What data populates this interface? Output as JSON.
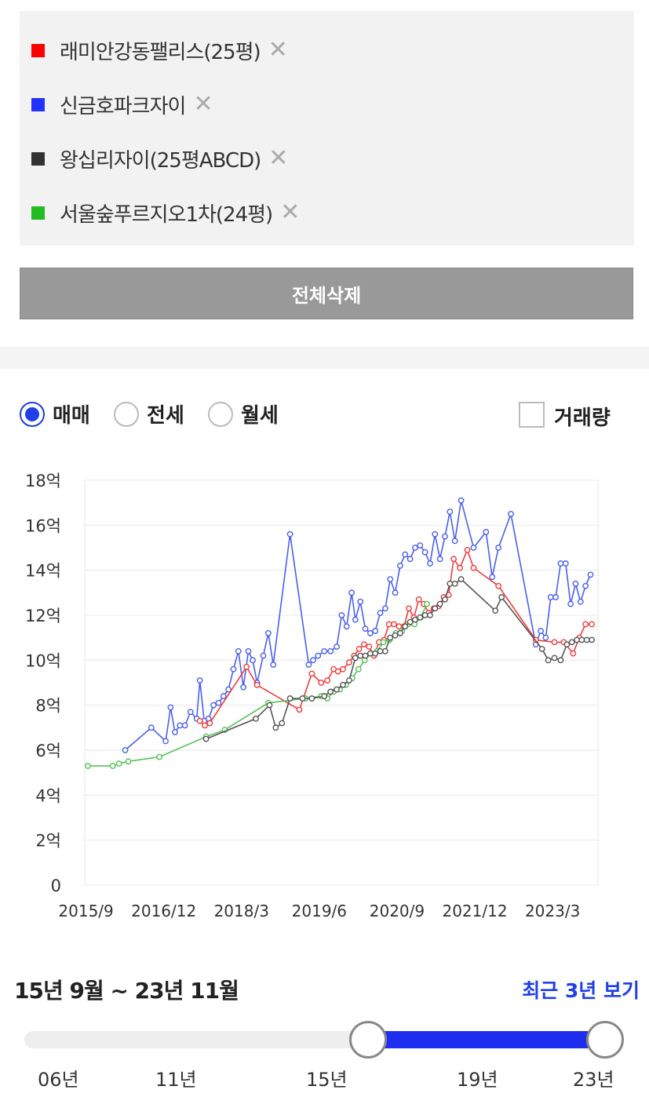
{
  "legend": {
    "items": [
      {
        "label": "래미안강동팰리스(25평)",
        "color": "#ff0000",
        "remove": "✕"
      },
      {
        "label": "신금호파크자이",
        "color": "#2233ff",
        "remove": "✕"
      },
      {
        "label": "왕십리자이(25평ABCD)",
        "color": "#333333",
        "remove": "✕"
      },
      {
        "label": "서울숲푸르지오1차(24평)",
        "color": "#22bb22",
        "remove": "✕"
      }
    ],
    "delete_all": "전체삭제"
  },
  "trade_type": {
    "options": [
      "매매",
      "전세",
      "월세"
    ],
    "selected": "매매",
    "volume_label": "거래량",
    "volume_checked": false
  },
  "range": {
    "text": "15년 9월 ~ 23년 11월",
    "recent_link": "최근 3년 보기",
    "slider_ticks": [
      "06년",
      "11년",
      "15년",
      "19년",
      "23년"
    ],
    "slider_start_year": 2015.7,
    "slider_end_year": 2023.9
  },
  "chart_data": {
    "type": "line",
    "y_ticks": [
      "0",
      "2억",
      "4억",
      "6억",
      "8억",
      "10억",
      "12억",
      "14억",
      "16억",
      "18억"
    ],
    "x_ticks": [
      {
        "label": "2015/9",
        "x": 2015.67
      },
      {
        "label": "2016/12",
        "x": 2016.92
      },
      {
        "label": "2018/3",
        "x": 2018.17
      },
      {
        "label": "2019/6",
        "x": 2019.42
      },
      {
        "label": "2020/9",
        "x": 2020.67
      },
      {
        "label": "2021/12",
        "x": 2021.92
      },
      {
        "label": "2023/3",
        "x": 2023.17
      }
    ],
    "ylim": [
      0,
      18
    ],
    "xlim": [
      2015.65,
      2023.9
    ],
    "ylabel_unit": "억",
    "grid": true,
    "series": [
      {
        "name": "신금호파크자이",
        "color": "#4a5ff0",
        "points": [
          [
            2016.3,
            6.0
          ],
          [
            2016.72,
            7.0
          ],
          [
            2016.95,
            6.4
          ],
          [
            2017.03,
            7.9
          ],
          [
            2017.1,
            6.8
          ],
          [
            2017.18,
            7.1
          ],
          [
            2017.26,
            7.1
          ],
          [
            2017.35,
            7.7
          ],
          [
            2017.45,
            7.4
          ],
          [
            2017.5,
            9.1
          ],
          [
            2017.57,
            7.3
          ],
          [
            2017.64,
            7.4
          ],
          [
            2017.72,
            8.0
          ],
          [
            2017.8,
            8.1
          ],
          [
            2017.88,
            8.4
          ],
          [
            2017.96,
            8.7
          ],
          [
            2018.04,
            9.6
          ],
          [
            2018.12,
            10.4
          ],
          [
            2018.2,
            8.8
          ],
          [
            2018.28,
            10.4
          ],
          [
            2018.35,
            10.0
          ],
          [
            2018.42,
            9.0
          ],
          [
            2018.52,
            10.2
          ],
          [
            2018.6,
            11.2
          ],
          [
            2018.68,
            9.8
          ],
          [
            2018.95,
            15.6
          ],
          [
            2019.25,
            9.8
          ],
          [
            2019.32,
            10.0
          ],
          [
            2019.4,
            10.2
          ],
          [
            2019.5,
            10.4
          ],
          [
            2019.6,
            10.4
          ],
          [
            2019.7,
            10.6
          ],
          [
            2019.78,
            12.0
          ],
          [
            2019.86,
            11.5
          ],
          [
            2019.94,
            13.0
          ],
          [
            2020.0,
            11.8
          ],
          [
            2020.08,
            12.6
          ],
          [
            2020.16,
            11.4
          ],
          [
            2020.24,
            11.2
          ],
          [
            2020.32,
            11.3
          ],
          [
            2020.4,
            12.1
          ],
          [
            2020.48,
            12.3
          ],
          [
            2020.56,
            13.6
          ],
          [
            2020.64,
            13.0
          ],
          [
            2020.72,
            14.2
          ],
          [
            2020.8,
            14.7
          ],
          [
            2020.88,
            14.5
          ],
          [
            2020.96,
            15.0
          ],
          [
            2021.04,
            15.1
          ],
          [
            2021.12,
            14.8
          ],
          [
            2021.2,
            14.3
          ],
          [
            2021.28,
            15.6
          ],
          [
            2021.36,
            14.5
          ],
          [
            2021.44,
            15.5
          ],
          [
            2021.52,
            16.6
          ],
          [
            2021.6,
            15.3
          ],
          [
            2021.7,
            17.1
          ],
          [
            2021.9,
            15.0
          ],
          [
            2022.1,
            15.7
          ],
          [
            2022.2,
            13.7
          ],
          [
            2022.3,
            15.0
          ],
          [
            2022.5,
            16.5
          ],
          [
            2022.9,
            10.7
          ],
          [
            2022.98,
            11.3
          ],
          [
            2023.06,
            11.0
          ],
          [
            2023.14,
            12.8
          ],
          [
            2023.22,
            12.8
          ],
          [
            2023.3,
            14.3
          ],
          [
            2023.38,
            14.3
          ],
          [
            2023.46,
            12.5
          ],
          [
            2023.54,
            13.4
          ],
          [
            2023.62,
            12.6
          ],
          [
            2023.7,
            13.3
          ],
          [
            2023.78,
            13.8
          ]
        ]
      },
      {
        "name": "래미안강동팰리스(25평)",
        "color": "#f23b3b",
        "points": [
          [
            2017.5,
            7.3
          ],
          [
            2017.58,
            7.1
          ],
          [
            2017.66,
            7.2
          ],
          [
            2018.25,
            9.7
          ],
          [
            2018.42,
            8.9
          ],
          [
            2019.1,
            7.8
          ],
          [
            2019.3,
            9.4
          ],
          [
            2019.45,
            9.0
          ],
          [
            2019.55,
            9.1
          ],
          [
            2019.65,
            9.6
          ],
          [
            2019.72,
            9.5
          ],
          [
            2019.8,
            9.6
          ],
          [
            2019.9,
            9.9
          ],
          [
            2019.98,
            10.2
          ],
          [
            2020.06,
            10.5
          ],
          [
            2020.14,
            10.7
          ],
          [
            2020.22,
            10.6
          ],
          [
            2020.3,
            10.2
          ],
          [
            2020.38,
            10.8
          ],
          [
            2020.46,
            10.9
          ],
          [
            2020.54,
            11.6
          ],
          [
            2020.62,
            11.6
          ],
          [
            2020.7,
            11.5
          ],
          [
            2020.78,
            11.5
          ],
          [
            2020.86,
            12.3
          ],
          [
            2020.94,
            11.9
          ],
          [
            2021.02,
            12.7
          ],
          [
            2021.1,
            12.5
          ],
          [
            2021.18,
            12.1
          ],
          [
            2021.26,
            12.3
          ],
          [
            2021.34,
            12.4
          ],
          [
            2021.42,
            12.8
          ],
          [
            2021.5,
            12.9
          ],
          [
            2021.58,
            14.5
          ],
          [
            2021.68,
            14.1
          ],
          [
            2021.8,
            14.9
          ],
          [
            2021.9,
            14.1
          ],
          [
            2022.3,
            13.3
          ],
          [
            2022.9,
            10.9
          ],
          [
            2023.2,
            10.8
          ],
          [
            2023.35,
            10.8
          ],
          [
            2023.5,
            10.3
          ],
          [
            2023.6,
            11.0
          ],
          [
            2023.7,
            11.6
          ],
          [
            2023.8,
            11.6
          ]
        ]
      },
      {
        "name": "서울숲푸르지오1차(24평)",
        "color": "#55c255",
        "points": [
          [
            2015.7,
            5.3
          ],
          [
            2016.1,
            5.3
          ],
          [
            2016.2,
            5.4
          ],
          [
            2016.35,
            5.5
          ],
          [
            2016.85,
            5.7
          ],
          [
            2017.6,
            6.6
          ],
          [
            2017.9,
            6.9
          ],
          [
            2018.6,
            8.1
          ],
          [
            2019.2,
            8.3
          ],
          [
            2019.45,
            8.4
          ],
          [
            2019.55,
            8.3
          ],
          [
            2019.65,
            8.6
          ],
          [
            2019.75,
            8.7
          ],
          [
            2019.85,
            8.9
          ],
          [
            2019.95,
            9.2
          ],
          [
            2020.05,
            9.6
          ],
          [
            2020.15,
            10.0
          ],
          [
            2020.25,
            10.3
          ],
          [
            2020.35,
            10.4
          ],
          [
            2020.45,
            10.8
          ],
          [
            2020.55,
            10.9
          ],
          [
            2020.65,
            11.2
          ],
          [
            2020.75,
            11.3
          ],
          [
            2020.85,
            11.6
          ],
          [
            2020.95,
            11.6
          ],
          [
            2021.05,
            11.9
          ],
          [
            2021.15,
            12.5
          ]
        ]
      },
      {
        "name": "왕십리자이(25평ABCD)",
        "color": "#555555",
        "points": [
          [
            2017.6,
            6.5
          ],
          [
            2018.4,
            7.4
          ],
          [
            2018.62,
            8.0
          ],
          [
            2018.72,
            7.0
          ],
          [
            2018.82,
            7.2
          ],
          [
            2018.95,
            8.3
          ],
          [
            2019.15,
            8.3
          ],
          [
            2019.3,
            8.3
          ],
          [
            2019.5,
            8.4
          ],
          [
            2019.6,
            8.6
          ],
          [
            2019.7,
            8.7
          ],
          [
            2019.8,
            8.9
          ],
          [
            2019.9,
            9.1
          ],
          [
            2020.0,
            10.1
          ],
          [
            2020.08,
            10.2
          ],
          [
            2020.16,
            10.2
          ],
          [
            2020.24,
            10.3
          ],
          [
            2020.32,
            10.3
          ],
          [
            2020.4,
            10.4
          ],
          [
            2020.48,
            10.4
          ],
          [
            2020.56,
            11.0
          ],
          [
            2020.64,
            11.1
          ],
          [
            2020.72,
            11.2
          ],
          [
            2020.8,
            11.5
          ],
          [
            2020.88,
            11.7
          ],
          [
            2020.96,
            11.8
          ],
          [
            2021.04,
            11.9
          ],
          [
            2021.12,
            12.0
          ],
          [
            2021.2,
            12.0
          ],
          [
            2021.28,
            12.3
          ],
          [
            2021.36,
            12.5
          ],
          [
            2021.44,
            12.7
          ],
          [
            2021.52,
            13.4
          ],
          [
            2021.6,
            13.4
          ],
          [
            2021.7,
            13.6
          ],
          [
            2022.25,
            12.2
          ],
          [
            2022.35,
            12.8
          ],
          [
            2023.0,
            10.5
          ],
          [
            2023.1,
            10.0
          ],
          [
            2023.2,
            10.1
          ],
          [
            2023.3,
            10.0
          ],
          [
            2023.4,
            10.7
          ],
          [
            2023.48,
            10.8
          ],
          [
            2023.56,
            10.9
          ],
          [
            2023.64,
            10.9
          ],
          [
            2023.72,
            10.9
          ],
          [
            2023.8,
            10.9
          ]
        ]
      }
    ]
  }
}
